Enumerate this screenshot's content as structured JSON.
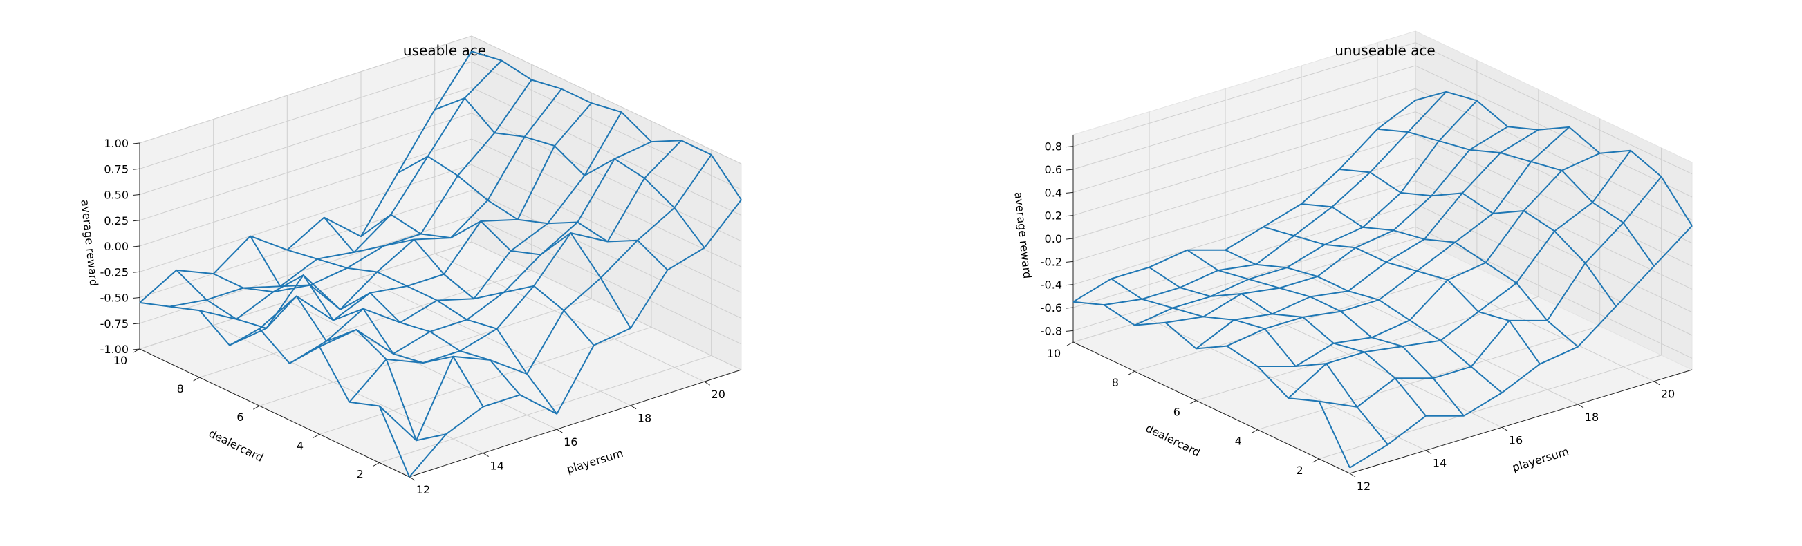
{
  "chart_data": [
    {
      "type": "wireframe3d",
      "title": "useable ace",
      "xlabel": "dealercard",
      "ylabel": "playersum",
      "zlabel": "average reward",
      "x_ticks": [
        "2",
        "4",
        "6",
        "8",
        "10"
      ],
      "y_ticks": [
        "12",
        "14",
        "16",
        "18",
        "20"
      ],
      "z_ticks": [
        "-1.00",
        "-0.75",
        "-0.50",
        "-0.25",
        "0.00",
        "0.25",
        "0.50",
        "0.75",
        "1.00"
      ],
      "xlim": [
        1,
        10
      ],
      "ylim": [
        12,
        21
      ],
      "zlim": [
        -1.0,
        1.0
      ],
      "grid": true,
      "color": "#1f77b4",
      "x": [
        1,
        2,
        3,
        4,
        5,
        6,
        7,
        8,
        9,
        10
      ],
      "y": [
        12,
        13,
        14,
        15,
        16,
        17,
        18,
        19,
        20,
        21
      ],
      "z": [
        [
          -1.0,
          -0.45,
          -0.55,
          -0.15,
          -0.45,
          -0.25,
          -0.55,
          -0.35,
          -0.45,
          -0.55
        ],
        [
          -0.7,
          -0.9,
          -0.25,
          -0.1,
          -0.35,
          -0.05,
          -0.5,
          -0.55,
          -0.5,
          -0.35
        ],
        [
          -0.55,
          -0.2,
          -0.4,
          -0.45,
          -0.15,
          -0.4,
          -0.1,
          -0.4,
          -0.5,
          -0.5
        ],
        [
          -0.55,
          -0.35,
          -0.4,
          -0.35,
          -0.4,
          -0.25,
          -0.55,
          -0.45,
          -0.6,
          -0.25
        ],
        [
          -0.85,
          -0.6,
          -0.3,
          -0.35,
          -0.3,
          -0.3,
          -0.3,
          -0.4,
          -0.45,
          -0.5
        ],
        [
          -0.3,
          -0.1,
          0.0,
          -0.2,
          -0.4,
          -0.3,
          -0.1,
          -0.3,
          -0.5,
          -0.3
        ],
        [
          -0.25,
          0.1,
          0.4,
          0.05,
          -0.05,
          0.1,
          -0.2,
          -0.3,
          -0.25,
          -0.6
        ],
        [
          0.2,
          0.35,
          0.2,
          0.25,
          0.1,
          0.0,
          0.05,
          0.15,
          0.2,
          -0.1
        ],
        [
          0.3,
          0.55,
          0.7,
          0.75,
          0.45,
          0.6,
          0.55,
          0.45,
          0.65,
          0.4
        ],
        [
          0.65,
          0.95,
          0.95,
          0.8,
          0.95,
          0.9,
          0.9,
          0.85,
          0.9,
          0.85
        ]
      ]
    },
    {
      "type": "wireframe3d",
      "title": "unuseable ace",
      "xlabel": "dealercard",
      "ylabel": "playersum",
      "zlabel": "average reward",
      "x_ticks": [
        "2",
        "4",
        "6",
        "8",
        "10"
      ],
      "y_ticks": [
        "12",
        "14",
        "16",
        "18",
        "20"
      ],
      "z_ticks": [
        "-0.8",
        "-0.6",
        "-0.4",
        "-0.2",
        "0.0",
        "0.2",
        "0.4",
        "0.6",
        "0.8"
      ],
      "xlim": [
        1,
        10
      ],
      "ylim": [
        12,
        21
      ],
      "zlim": [
        -0.9,
        0.9
      ],
      "grid": true,
      "color": "#1f77b4",
      "x": [
        1,
        2,
        3,
        4,
        5,
        6,
        7,
        8,
        9,
        10
      ],
      "y": [
        12,
        13,
        14,
        15,
        16,
        17,
        18,
        19,
        20,
        21
      ],
      "z": [
        [
          -0.85,
          -0.4,
          -0.5,
          -0.35,
          -0.3,
          -0.45,
          -0.35,
          -0.5,
          -0.45,
          -0.55
        ],
        [
          -0.75,
          -0.55,
          -0.3,
          -0.45,
          -0.25,
          -0.3,
          -0.4,
          -0.45,
          -0.5,
          -0.45
        ],
        [
          -0.6,
          -0.4,
          -0.3,
          -0.35,
          -0.25,
          -0.35,
          -0.3,
          -0.45,
          -0.5,
          -0.45
        ],
        [
          -0.7,
          -0.5,
          -0.35,
          -0.4,
          -0.3,
          -0.3,
          -0.35,
          -0.4,
          -0.45,
          -0.4
        ],
        [
          -0.6,
          -0.5,
          -0.4,
          -0.35,
          -0.3,
          -0.35,
          -0.35,
          -0.4,
          -0.5,
          -0.5
        ],
        [
          -0.45,
          -0.2,
          -0.25,
          -0.1,
          -0.15,
          -0.2,
          -0.2,
          -0.3,
          -0.35,
          -0.4
        ],
        [
          -0.4,
          -0.3,
          -0.1,
          -0.05,
          0.0,
          -0.1,
          -0.15,
          -0.25,
          -0.2,
          -0.3
        ],
        [
          -0.15,
          0.1,
          0.25,
          0.3,
          0.15,
          0.2,
          0.05,
          -0.05,
          0.0,
          -0.1
        ],
        [
          0.1,
          0.35,
          0.4,
          0.55,
          0.5,
          0.45,
          0.35,
          0.3,
          0.25,
          0.15
        ],
        [
          0.35,
          0.65,
          0.75,
          0.6,
          0.7,
          0.55,
          0.45,
          0.55,
          0.5,
          0.3
        ]
      ]
    }
  ]
}
